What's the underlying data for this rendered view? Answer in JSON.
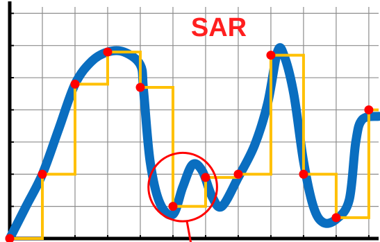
{
  "chart_data": {
    "type": "line",
    "title": "SAR",
    "xlabel": "",
    "ylabel": "",
    "grid": true,
    "xlim": [
      0,
      11.3
    ],
    "ylim": [
      0,
      7.2
    ],
    "colors": {
      "title": "#ff1f1f",
      "signal": "#0a6ec0",
      "steps": "#ffc000",
      "samples": "#ff0000",
      "highlight": "#ff0000",
      "grid": "#8c8c8c",
      "axes": "#000000"
    },
    "series": [
      {
        "name": "",
        "role": "analog-signal",
        "points": [
          [
            0,
            0
          ],
          [
            0.5,
            1
          ],
          [
            1,
            2
          ],
          [
            1.5,
            3.4
          ],
          [
            2,
            4.8
          ],
          [
            2.5,
            5.5
          ],
          [
            3,
            5.8
          ],
          [
            3.5,
            5.8
          ],
          [
            4,
            5.4
          ],
          [
            4.1,
            4.6
          ],
          [
            4.3,
            2.4
          ],
          [
            4.6,
            1.1
          ],
          [
            5,
            0.75
          ],
          [
            5.3,
            1.6
          ],
          [
            5.6,
            2.3
          ],
          [
            5.9,
            2.1
          ],
          [
            6.2,
            1.3
          ],
          [
            6.5,
            1.0
          ],
          [
            7,
            1.9
          ],
          [
            7.5,
            2.9
          ],
          [
            7.9,
            4.2
          ],
          [
            8.2,
            5.8
          ],
          [
            8.4,
            5.7
          ],
          [
            8.7,
            4.5
          ],
          [
            9,
            2.4
          ],
          [
            9.3,
            1.0
          ],
          [
            9.6,
            0.5
          ],
          [
            10,
            0.6
          ],
          [
            10.4,
            1.2
          ],
          [
            10.6,
            3.0
          ],
          [
            10.8,
            3.7
          ],
          [
            11.3,
            3.8
          ]
        ]
      },
      {
        "name": "",
        "role": "sample-and-hold",
        "x": [
          0,
          1,
          2,
          3,
          4,
          5,
          6,
          7,
          8,
          9,
          10,
          11
        ],
        "values": [
          0,
          2,
          4.8,
          5.8,
          4.7,
          1,
          1.9,
          2,
          5.7,
          2,
          0.65,
          4
        ]
      }
    ],
    "samples": {
      "x": [
        0,
        1,
        2,
        3,
        4,
        5,
        6,
        7,
        8,
        9,
        10,
        11
      ],
      "y": [
        0,
        2,
        4.8,
        5.8,
        4.7,
        1,
        1.9,
        2,
        5.7,
        2,
        0.65,
        4
      ]
    },
    "annotation": {
      "type": "circle",
      "center": [
        5.3,
        1.6
      ],
      "radius": 1.05
    }
  }
}
